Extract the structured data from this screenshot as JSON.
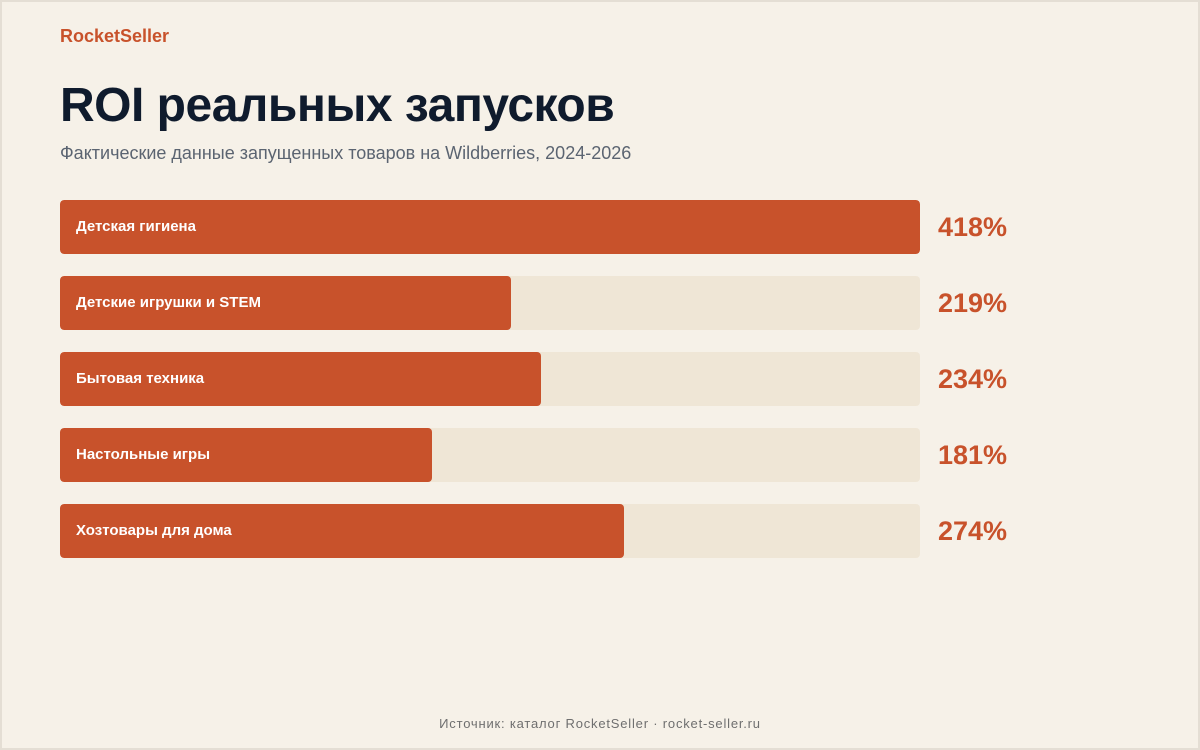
{
  "brand": "RocketSeller",
  "title": "ROI реальных запусков",
  "subtitle": "Фактические данные запущенных товаров на Wildberries, 2024-2026",
  "footer": "Источник: каталог RocketSeller · rocket-seller.ru",
  "colors": {
    "accent": "#c8522b",
    "track": "#efe6d6",
    "background": "#f6f1e8",
    "title": "#0f1b2d"
  },
  "chart_data": {
    "type": "bar",
    "orientation": "horizontal",
    "title": "ROI реальных запусков",
    "subtitle": "Фактические данные запущенных товаров на Wildberries, 2024-2026",
    "xlabel": "",
    "ylabel": "",
    "xlim": [
      0,
      418
    ],
    "grid": false,
    "categories": [
      "Детская гигиена",
      "Детские игрушки и STEM",
      "Бытовая техника",
      "Настольные игры",
      "Хозтовары для дома"
    ],
    "values": [
      418,
      219,
      234,
      181,
      274
    ],
    "value_labels": [
      "418%",
      "219%",
      "234%",
      "181%",
      "274%"
    ]
  }
}
